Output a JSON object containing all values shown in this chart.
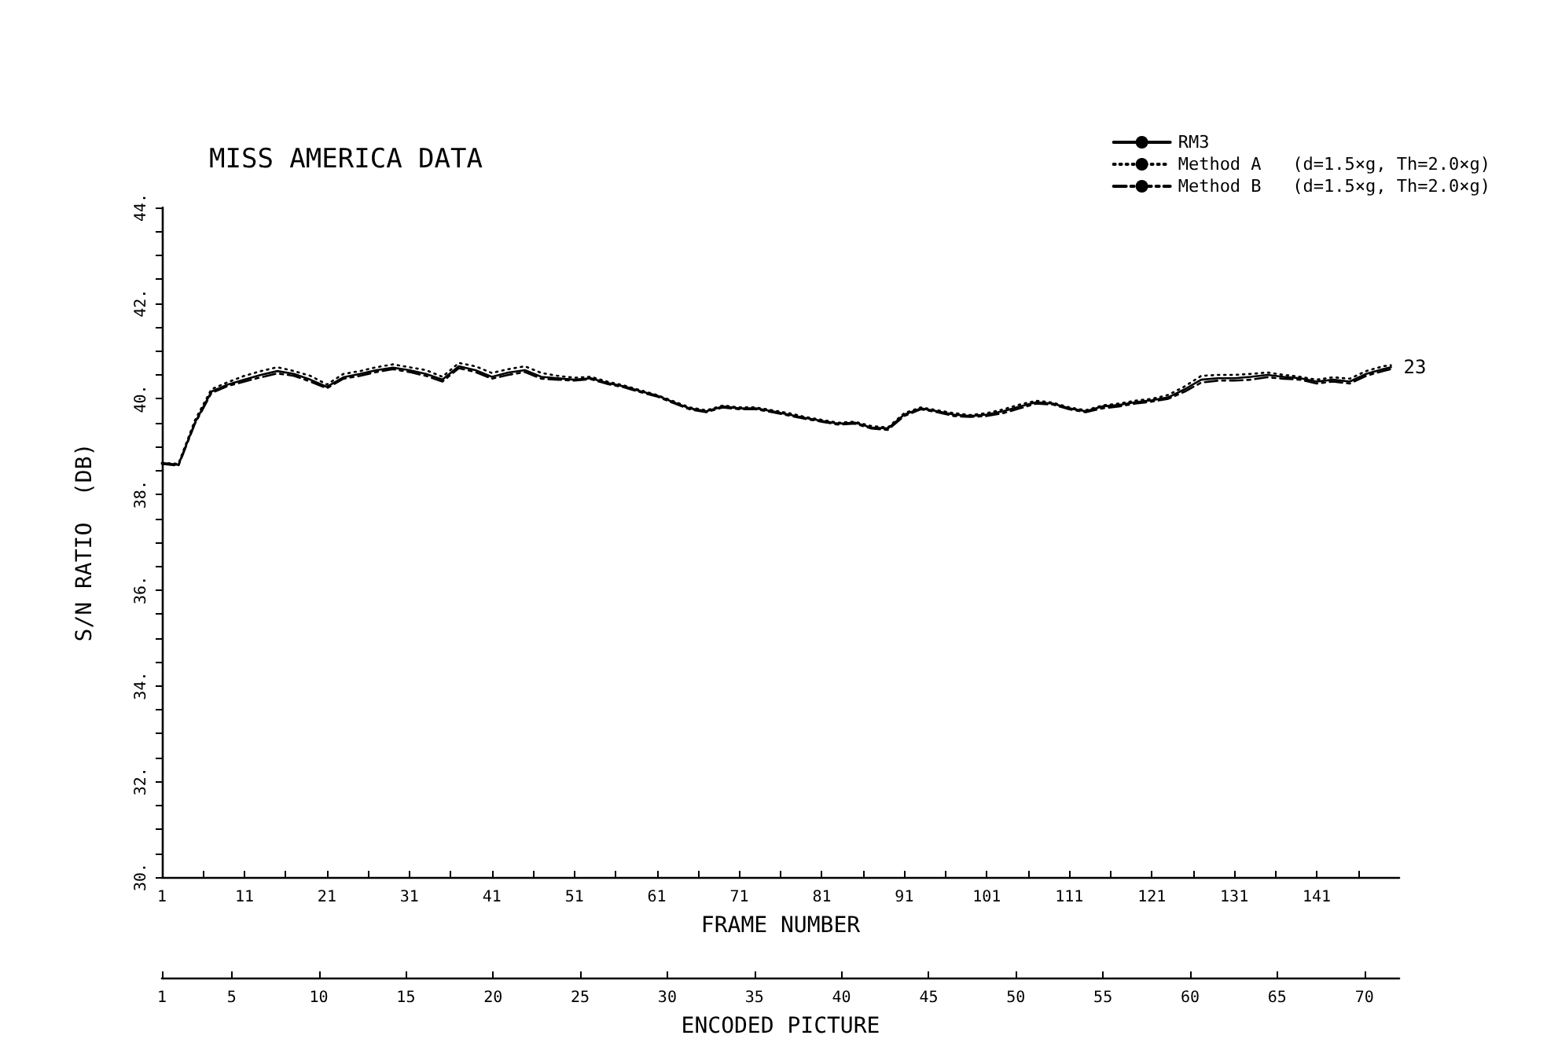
{
  "chart_data": {
    "type": "line",
    "title": "MISS AMERICA DATA",
    "xlabel": "FRAME NUMBER",
    "ylabel": "S/N RATIO  (DB)",
    "x2label": "ENCODED PICTURE",
    "x": [
      1,
      3,
      5,
      7,
      9,
      11,
      13,
      15,
      17,
      19,
      21,
      23,
      25,
      27,
      29,
      31,
      33,
      35,
      37,
      39,
      41,
      43,
      45,
      47,
      49,
      51,
      53,
      55,
      57,
      59,
      61,
      63,
      65,
      67,
      69,
      71,
      73,
      75,
      77,
      79,
      81,
      83,
      85,
      87,
      89,
      91,
      93,
      95,
      97,
      99,
      101,
      103,
      105,
      107,
      109,
      111,
      113,
      115,
      117,
      119,
      121,
      123,
      125,
      127,
      129,
      131,
      133,
      135,
      137,
      139,
      141,
      143,
      145,
      147,
      149,
      150
    ],
    "series": [
      {
        "name": "RM3",
        "color": "#000000",
        "line_style": "solid",
        "values": [
          38.66,
          38.62,
          39.5,
          40.15,
          40.3,
          40.4,
          40.5,
          40.58,
          40.52,
          40.4,
          40.25,
          40.45,
          40.52,
          40.6,
          40.65,
          40.6,
          40.52,
          40.4,
          40.68,
          40.6,
          40.46,
          40.55,
          40.6,
          40.46,
          40.43,
          40.4,
          40.43,
          40.33,
          40.26,
          40.16,
          40.07,
          39.93,
          39.8,
          39.74,
          39.84,
          39.8,
          39.8,
          39.74,
          39.67,
          39.6,
          39.54,
          39.48,
          39.5,
          39.4,
          39.38,
          39.67,
          39.8,
          39.74,
          39.67,
          39.64,
          39.67,
          39.74,
          39.84,
          39.93,
          39.9,
          39.8,
          39.74,
          39.84,
          39.87,
          39.93,
          39.97,
          40.03,
          40.2,
          40.4,
          40.43,
          40.43,
          40.46,
          40.5,
          40.46,
          40.43,
          40.36,
          40.4,
          40.36,
          40.52,
          40.62,
          40.66
        ]
      },
      {
        "name": "Method A   (d=1.5×g, Th=2.0×g)",
        "color": "#000000",
        "line_style": "dotted",
        "values": [
          38.66,
          38.64,
          39.55,
          40.2,
          40.35,
          40.48,
          40.58,
          40.66,
          40.58,
          40.48,
          40.3,
          40.52,
          40.58,
          40.66,
          40.72,
          40.66,
          40.6,
          40.46,
          40.75,
          40.68,
          40.54,
          40.62,
          40.68,
          40.54,
          40.48,
          40.44,
          40.46,
          40.36,
          40.28,
          40.18,
          40.08,
          39.95,
          39.82,
          39.76,
          39.86,
          39.82,
          39.82,
          39.76,
          39.7,
          39.62,
          39.56,
          39.5,
          39.52,
          39.43,
          39.4,
          39.7,
          39.82,
          39.76,
          39.7,
          39.66,
          39.7,
          39.78,
          39.88,
          39.96,
          39.92,
          39.82,
          39.76,
          39.86,
          39.9,
          39.96,
          40,
          40.08,
          40.26,
          40.48,
          40.5,
          40.5,
          40.52,
          40.55,
          40.5,
          40.46,
          40.4,
          40.45,
          40.42,
          40.58,
          40.68,
          40.7
        ]
      },
      {
        "name": "Method B   (d=1.5×g, Th=2.0×g)",
        "color": "#000000",
        "line_style": "dashed",
        "values": [
          38.64,
          38.6,
          39.48,
          40.12,
          40.27,
          40.36,
          40.45,
          40.53,
          40.48,
          40.36,
          40.22,
          40.42,
          40.48,
          40.56,
          40.62,
          40.56,
          40.48,
          40.36,
          40.64,
          40.56,
          40.42,
          40.5,
          40.56,
          40.42,
          40.4,
          40.38,
          40.41,
          40.31,
          40.24,
          40.14,
          40.05,
          39.91,
          39.78,
          39.72,
          39.82,
          39.78,
          39.78,
          39.72,
          39.65,
          39.58,
          39.52,
          39.46,
          39.48,
          39.38,
          39.35,
          39.64,
          39.78,
          39.72,
          39.64,
          39.62,
          39.64,
          39.7,
          39.8,
          39.9,
          39.88,
          39.78,
          39.72,
          39.8,
          39.84,
          39.9,
          39.94,
          40,
          40.15,
          40.34,
          40.38,
          40.38,
          40.4,
          40.45,
          40.42,
          40.4,
          40.32,
          40.36,
          40.32,
          40.48,
          40.58,
          40.62
        ]
      }
    ],
    "xlim": [
      1,
      151
    ],
    "xticks": [
      1,
      {
        "value": 6,
        "label": null
      },
      11,
      {
        "value": 16,
        "label": null
      },
      21,
      {
        "value": 26,
        "label": null
      },
      31,
      {
        "value": 36,
        "label": null
      },
      41,
      {
        "value": 46,
        "label": null
      },
      51,
      {
        "value": 56,
        "label": null
      },
      61,
      {
        "value": 66,
        "label": null
      },
      71,
      {
        "value": 76,
        "label": null
      },
      81,
      {
        "value": 86,
        "label": null
      },
      91,
      {
        "value": 96,
        "label": null
      },
      101,
      {
        "value": 106,
        "label": null
      },
      111,
      {
        "value": 116,
        "label": null
      },
      121,
      {
        "value": 126,
        "label": null
      },
      131,
      {
        "value": 136,
        "label": null
      },
      141,
      {
        "value": 146,
        "label": null
      }
    ],
    "x2lim": [
      1,
      72
    ],
    "x2ticks": [
      1,
      5,
      10,
      15,
      20,
      25,
      30,
      35,
      40,
      45,
      50,
      55,
      60,
      65,
      70
    ],
    "ylim": [
      30,
      44
    ],
    "yticks": [
      {
        "value": 30,
        "label": "30."
      },
      {
        "value": 30.5,
        "label": null
      },
      {
        "value": 31,
        "label": null
      },
      {
        "value": 31.5,
        "label": null
      },
      {
        "value": 32,
        "label": "32."
      },
      {
        "value": 32.5,
        "label": null
      },
      {
        "value": 33,
        "label": null
      },
      {
        "value": 33.5,
        "label": null
      },
      {
        "value": 34,
        "label": "34."
      },
      {
        "value": 34.5,
        "label": null
      },
      {
        "value": 35,
        "label": null
      },
      {
        "value": 35.5,
        "label": null
      },
      {
        "value": 36,
        "label": "36."
      },
      {
        "value": 36.5,
        "label": null
      },
      {
        "value": 37,
        "label": null
      },
      {
        "value": 37.5,
        "label": null
      },
      {
        "value": 38,
        "label": "38."
      },
      {
        "value": 38.5,
        "label": null
      },
      {
        "value": 39,
        "label": null
      },
      {
        "value": 39.5,
        "label": null
      },
      {
        "value": 40,
        "label": "40."
      },
      {
        "value": 40.5,
        "label": null
      },
      {
        "value": 41,
        "label": null
      },
      {
        "value": 41.5,
        "label": null
      },
      {
        "value": 42,
        "label": "42."
      },
      {
        "value": 42.5,
        "label": null
      },
      {
        "value": 43,
        "label": null
      },
      {
        "value": 43.5,
        "label": null
      },
      {
        "value": 44,
        "label": "44."
      }
    ],
    "annotations": [
      {
        "text": "23",
        "x": 150,
        "y": 40.66
      }
    ],
    "grid": false,
    "legend": "top right",
    "marker": "none"
  }
}
